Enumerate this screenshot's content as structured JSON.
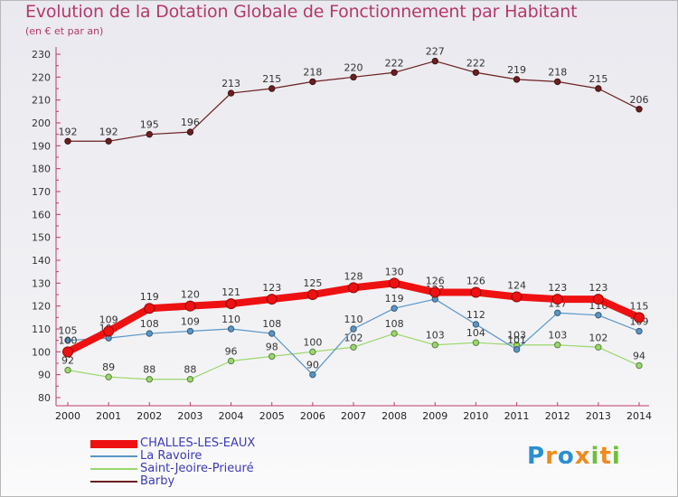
{
  "chart_data": {
    "type": "line",
    "title": "Evolution de la Dotation Globale de Fonctionnement par Habitant",
    "subtitle": "(en € et par an)",
    "categories": [
      "2000",
      "2001",
      "2002",
      "2003",
      "2004",
      "2005",
      "2006",
      "2007",
      "2008",
      "2009",
      "2010",
      "2011",
      "2012",
      "2013",
      "2014"
    ],
    "ylim": [
      80,
      230
    ],
    "yticks": [
      80,
      90,
      100,
      110,
      120,
      130,
      140,
      150,
      160,
      170,
      180,
      190,
      200,
      210,
      220,
      230
    ],
    "grid": false,
    "series": [
      {
        "name": "Barby",
        "color": "#6b1f1f",
        "width": 1.2,
        "values": [
          192,
          192,
          195,
          196,
          213,
          215,
          218,
          220,
          222,
          227,
          222,
          219,
          218,
          215,
          206
        ],
        "labels": [
          "192",
          "192",
          "195",
          "196",
          "213",
          "215",
          "218",
          "220",
          "222",
          "227",
          "222",
          "219",
          "218",
          "215",
          "206"
        ]
      },
      {
        "name": "Saint-Jeoire-Prieuré",
        "color": "#9ad86a",
        "width": 1.2,
        "values": [
          92,
          89,
          88,
          88,
          96,
          98,
          100,
          102,
          108,
          103,
          104,
          103,
          103,
          102,
          94
        ],
        "labels": [
          "92",
          "89",
          "88",
          "88",
          "96",
          "98",
          "100",
          "102",
          "108",
          "103",
          "104",
          "103",
          "103",
          "102",
          "94"
        ]
      },
      {
        "name": "La Ravoire",
        "color": "#5a96c6",
        "width": 1.2,
        "values": [
          105,
          106,
          108,
          109,
          110,
          108,
          90,
          110,
          119,
          123,
          112,
          101,
          117,
          116,
          109
        ],
        "labels": [
          "105",
          "106",
          "108",
          "109",
          "110",
          "108",
          "90",
          "110",
          "119",
          "123",
          "112",
          "101",
          "117",
          "116",
          "109"
        ]
      },
      {
        "name": "CHALLES-LES-EAUX",
        "color": "#ee1111",
        "width": 8,
        "values": [
          100,
          109,
          119,
          120,
          121,
          123,
          125,
          128,
          130,
          126,
          126,
          124,
          123,
          123,
          115
        ],
        "labels": [
          "100",
          "109",
          "119",
          "120",
          "121",
          "123",
          "125",
          "128",
          "130",
          "126",
          "126",
          "124",
          "123",
          "123",
          "115"
        ]
      }
    ],
    "legend": {
      "position": "bottom-left",
      "items": [
        {
          "name": "CHALLES-LES-EAUX",
          "color": "#ee1111",
          "thickness": 9
        },
        {
          "name": "La Ravoire",
          "color": "#5a96c6",
          "thickness": 2
        },
        {
          "name": "Saint-Jeoire-Prieuré",
          "color": "#9ad86a",
          "thickness": 2
        },
        {
          "name": "Barby",
          "color": "#6b1f1f",
          "thickness": 2
        }
      ]
    }
  },
  "brand": {
    "name": "Proxiti",
    "letters": [
      {
        "ch": "P",
        "color": "#2a8fd0"
      },
      {
        "ch": "r",
        "color": "#f08a1c"
      },
      {
        "ch": "o",
        "color": "#2a8fd0"
      },
      {
        "ch": "x",
        "color": "#f08a1c"
      },
      {
        "ch": "i",
        "color": "#6fbf3a"
      },
      {
        "ch": "t",
        "color": "#f08a1c"
      },
      {
        "ch": "i",
        "color": "#6fbf3a"
      }
    ]
  }
}
